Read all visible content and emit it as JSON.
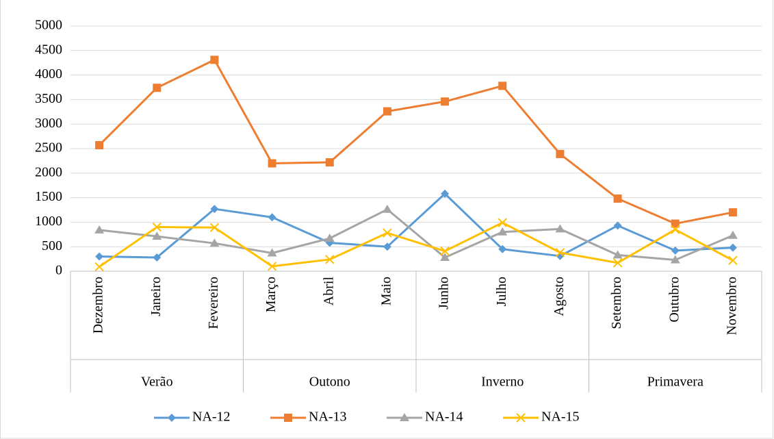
{
  "chart_data": {
    "type": "line",
    "categories": [
      "Dezembro",
      "Janeiro",
      "Fevereiro",
      "Março",
      "Abril",
      "Maio",
      "Junho",
      "Julho",
      "Agosto",
      "Setembro",
      "Outubro",
      "Novembro"
    ],
    "category_groups": [
      {
        "label": "Verão",
        "size": 3
      },
      {
        "label": "Outono",
        "size": 3
      },
      {
        "label": "Inverno",
        "size": 3
      },
      {
        "label": "Primavera",
        "size": 3
      }
    ],
    "series": [
      {
        "name": "NA-12",
        "color": "#5b9bd5",
        "marker": "diamond",
        "values": [
          300,
          280,
          1270,
          1100,
          580,
          500,
          1580,
          450,
          310,
          930,
          420,
          480
        ]
      },
      {
        "name": "NA-13",
        "color": "#ed7d31",
        "marker": "square",
        "values": [
          2570,
          3740,
          4310,
          2200,
          2220,
          3260,
          3460,
          3780,
          2390,
          1480,
          970,
          1200
        ]
      },
      {
        "name": "NA-14",
        "color": "#a5a5a5",
        "marker": "triangle",
        "values": [
          840,
          710,
          570,
          370,
          670,
          1260,
          280,
          800,
          860,
          330,
          230,
          730
        ]
      },
      {
        "name": "NA-15",
        "color": "#ffc000",
        "marker": "x",
        "values": [
          90,
          900,
          890,
          100,
          240,
          780,
          410,
          990,
          380,
          170,
          850,
          220
        ]
      }
    ],
    "ylim": [
      0,
      5000
    ],
    "yticks": [
      0,
      500,
      1000,
      1500,
      2000,
      2500,
      3000,
      3500,
      4000,
      4500,
      5000
    ],
    "grid": true,
    "legend": "bottom"
  }
}
